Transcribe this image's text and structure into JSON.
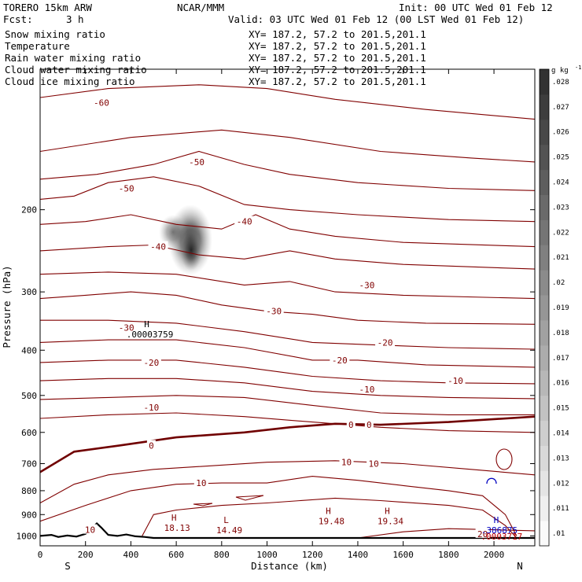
{
  "header": {
    "model": "TORERO   15km ARW",
    "center": "NCAR/MMM",
    "init": "Init: 00 UTC Wed 01 Feb 12",
    "fcst_label": "Fcst:",
    "fcst_value": "3 h",
    "valid": "Valid: 03 UTC Wed 01 Feb 12 (00 LST Wed 01 Feb 12)"
  },
  "fields": [
    {
      "name": "Snow mixing ratio",
      "xy": "XY= 187.2, 57.2 to 201.5,201.1",
      "color": "#000000"
    },
    {
      "name": "Temperature",
      "xy": "XY= 187.2, 57.2 to 201.5,201.1",
      "color": "#c00000"
    },
    {
      "name": "Rain water mixing ratio",
      "xy": "XY= 187.2, 57.2 to 201.5,201.1",
      "color": "#c00000"
    },
    {
      "name": "Cloud water mixing ratio",
      "xy": "XY= 187.2, 57.2 to 201.5,201.1",
      "color": "#0000c0"
    },
    {
      "name": "Cloud ice mixing ratio",
      "xy": "XY= 187.2, 57.2 to 201.5,201.1",
      "color": "#000000"
    }
  ],
  "chart_data": {
    "type": "line",
    "xlabel": "Distance (km)",
    "ylabel": "Pressure (hPa)",
    "xlim": [
      0,
      2180
    ],
    "ylim": [
      1050,
      100
    ],
    "x_ticks": [
      0,
      200,
      400,
      600,
      800,
      1000,
      1200,
      1400,
      1600,
      1800,
      2000
    ],
    "y_ticks": [
      200,
      300,
      400,
      500,
      600,
      700,
      800,
      900,
      1000
    ],
    "y_scale": "log",
    "grid": false,
    "endpoints": {
      "left": "S",
      "right": "N"
    },
    "colors": {
      "temperature": "#800000",
      "zero_line": "#700000",
      "terrain": "#000000",
      "cloud_water": "#0000c0",
      "rain": "#c00000"
    },
    "colorbar": {
      "unit": "g kg",
      "unit_exp": "-1",
      "ticks": [
        ".01",
        ".011",
        ".012",
        ".013",
        ".014",
        ".015",
        ".016",
        ".017",
        ".018",
        ".019",
        ".02",
        ".021",
        ".022",
        ".023",
        ".024",
        ".025",
        ".026",
        ".027",
        ".028"
      ]
    },
    "isotherms": [
      {
        "label": "-60",
        "points": [
          [
            0,
            115
          ],
          [
            300,
            110
          ],
          [
            700,
            108
          ],
          [
            1000,
            110
          ],
          [
            1300,
            116
          ],
          [
            1700,
            122
          ],
          [
            2180,
            128
          ]
        ]
      },
      {
        "label": "",
        "points": [
          [
            0,
            150
          ],
          [
            400,
            140
          ],
          [
            800,
            135
          ],
          [
            1100,
            140
          ],
          [
            1500,
            150
          ],
          [
            1900,
            155
          ],
          [
            2180,
            158
          ]
        ]
      },
      {
        "label": "-50",
        "points": [
          [
            0,
            172
          ],
          [
            250,
            168
          ],
          [
            500,
            160
          ],
          [
            700,
            150
          ],
          [
            900,
            160
          ],
          [
            1100,
            168
          ],
          [
            1400,
            175
          ],
          [
            1800,
            180
          ],
          [
            2180,
            182
          ]
        ]
      },
      {
        "label": "-50",
        "points": [
          [
            0,
            190
          ],
          [
            150,
            187
          ],
          [
            300,
            175
          ],
          [
            500,
            170
          ],
          [
            700,
            178
          ],
          [
            900,
            195
          ],
          [
            1100,
            200
          ],
          [
            1400,
            205
          ],
          [
            1800,
            210
          ],
          [
            2180,
            212
          ]
        ]
      },
      {
        "label": "-40",
        "points": [
          [
            0,
            215
          ],
          [
            200,
            212
          ],
          [
            400,
            205
          ],
          [
            600,
            215
          ],
          [
            800,
            220
          ],
          [
            950,
            205
          ],
          [
            1100,
            220
          ],
          [
            1300,
            228
          ],
          [
            1600,
            235
          ],
          [
            2180,
            240
          ]
        ]
      },
      {
        "label": "-40",
        "points": [
          [
            0,
            245
          ],
          [
            300,
            240
          ],
          [
            500,
            238
          ],
          [
            700,
            250
          ],
          [
            900,
            255
          ],
          [
            1100,
            245
          ],
          [
            1300,
            255
          ],
          [
            1600,
            262
          ],
          [
            2180,
            268
          ]
        ]
      },
      {
        "label": "-30",
        "points": [
          [
            0,
            275
          ],
          [
            300,
            272
          ],
          [
            600,
            275
          ],
          [
            900,
            290
          ],
          [
            1100,
            285
          ],
          [
            1300,
            300
          ],
          [
            1600,
            305
          ],
          [
            2180,
            310
          ]
        ]
      },
      {
        "label": "-30",
        "points": [
          [
            0,
            310
          ],
          [
            200,
            305
          ],
          [
            400,
            300
          ],
          [
            600,
            305
          ],
          [
            800,
            320
          ],
          [
            1000,
            330
          ],
          [
            1200,
            335
          ],
          [
            1400,
            345
          ],
          [
            1700,
            350
          ],
          [
            2180,
            352
          ]
        ]
      },
      {
        "label": "-30",
        "points": [
          [
            0,
            345
          ],
          [
            300,
            345
          ],
          [
            600,
            350
          ],
          [
            900,
            365
          ],
          [
            1200,
            385
          ],
          [
            1500,
            390
          ],
          [
            1800,
            395
          ],
          [
            2180,
            398
          ]
        ]
      },
      {
        "label": "-20",
        "points": [
          [
            0,
            385
          ],
          [
            300,
            380
          ],
          [
            600,
            380
          ],
          [
            900,
            395
          ],
          [
            1200,
            420
          ],
          [
            1400,
            420
          ],
          [
            1700,
            430
          ],
          [
            2180,
            435
          ]
        ]
      },
      {
        "label": "-20",
        "points": [
          [
            0,
            425
          ],
          [
            300,
            420
          ],
          [
            600,
            420
          ],
          [
            900,
            435
          ],
          [
            1200,
            455
          ],
          [
            1500,
            465
          ],
          [
            1800,
            470
          ],
          [
            2180,
            472
          ]
        ]
      },
      {
        "label": "-10",
        "points": [
          [
            0,
            465
          ],
          [
            300,
            460
          ],
          [
            600,
            460
          ],
          [
            900,
            470
          ],
          [
            1200,
            490
          ],
          [
            1500,
            500
          ],
          [
            1800,
            505
          ],
          [
            2180,
            508
          ]
        ]
      },
      {
        "label": "-10",
        "points": [
          [
            0,
            510
          ],
          [
            300,
            505
          ],
          [
            600,
            500
          ],
          [
            900,
            505
          ],
          [
            1200,
            525
          ],
          [
            1500,
            545
          ],
          [
            1800,
            550
          ],
          [
            2180,
            550
          ]
        ]
      },
      {
        "label": "",
        "points": [
          [
            0,
            560
          ],
          [
            300,
            550
          ],
          [
            600,
            545
          ],
          [
            900,
            555
          ],
          [
            1200,
            570
          ],
          [
            1500,
            585
          ],
          [
            1800,
            595
          ],
          [
            2180,
            600
          ]
        ]
      },
      {
        "label": "10",
        "points": [
          [
            0,
            850
          ],
          [
            150,
            775
          ],
          [
            300,
            740
          ],
          [
            500,
            720
          ],
          [
            700,
            710
          ],
          [
            1000,
            695
          ],
          [
            1300,
            690
          ],
          [
            1600,
            700
          ],
          [
            1900,
            720
          ],
          [
            2180,
            740
          ]
        ]
      },
      {
        "label": "10",
        "points": [
          [
            0,
            930
          ],
          [
            200,
            860
          ],
          [
            400,
            800
          ],
          [
            600,
            775
          ],
          [
            800,
            770
          ],
          [
            1000,
            770
          ],
          [
            1200,
            745
          ],
          [
            1400,
            760
          ],
          [
            1600,
            780
          ],
          [
            1800,
            800
          ],
          [
            1950,
            820
          ],
          [
            2050,
            900
          ],
          [
            2100,
            1000
          ]
        ]
      },
      {
        "label": "",
        "points": [
          [
            450,
            1000
          ],
          [
            500,
            900
          ],
          [
            600,
            880
          ],
          [
            800,
            860
          ],
          [
            1000,
            850
          ],
          [
            1300,
            830
          ],
          [
            1500,
            840
          ],
          [
            1800,
            860
          ],
          [
            1950,
            880
          ],
          [
            2050,
            950
          ],
          [
            2100,
            1010
          ]
        ]
      },
      {
        "label": "20",
        "points": [
          [
            1400,
            1010
          ],
          [
            1600,
            980
          ],
          [
            1800,
            965
          ],
          [
            2000,
            970
          ],
          [
            2180,
            975
          ]
        ]
      }
    ],
    "zero_isotherm": {
      "label": "0",
      "points": [
        [
          0,
          730
        ],
        [
          150,
          660
        ],
        [
          350,
          640
        ],
        [
          600,
          615
        ],
        [
          900,
          600
        ],
        [
          1100,
          585
        ],
        [
          1300,
          575
        ],
        [
          1500,
          578
        ],
        [
          1800,
          570
        ],
        [
          2180,
          555
        ]
      ]
    },
    "terrain": [
      [
        0,
        1000
      ],
      [
        50,
        995
      ],
      [
        80,
        1005
      ],
      [
        120,
        998
      ],
      [
        160,
        1003
      ],
      [
        200,
        990
      ],
      [
        230,
        960
      ],
      [
        250,
        940
      ],
      [
        270,
        960
      ],
      [
        300,
        995
      ],
      [
        340,
        1000
      ],
      [
        380,
        993
      ],
      [
        420,
        1002
      ],
      [
        460,
        1005
      ],
      [
        500,
        1010
      ],
      [
        2180,
        1010
      ]
    ],
    "extrema": [
      {
        "type": "H",
        "value": ".00003759",
        "x": 470,
        "p": 360
      },
      {
        "type": "H",
        "value": "18.13",
        "x": 590,
        "p": 935
      },
      {
        "type": "L",
        "value": "14.49",
        "x": 820,
        "p": 945
      },
      {
        "type": "H",
        "value": "19.48",
        "x": 1270,
        "p": 905
      },
      {
        "type": "H",
        "value": "19.34",
        "x": 1530,
        "p": 905
      },
      {
        "type": "H",
        "value": ".386875",
        "x": 2010,
        "p": 945
      },
      {
        "type": "",
        "value": ".0003717",
        "x": 2020,
        "p": 975
      }
    ],
    "isotherm_labels": [
      {
        "text": "-60",
        "x": 270,
        "p": 118
      },
      {
        "text": "-50",
        "x": 690,
        "p": 158
      },
      {
        "text": "-50",
        "x": 380,
        "p": 180
      },
      {
        "text": "-40",
        "x": 900,
        "p": 212
      },
      {
        "text": "-40",
        "x": 520,
        "p": 240
      },
      {
        "text": "-30",
        "x": 1440,
        "p": 290
      },
      {
        "text": "-30",
        "x": 1030,
        "p": 330
      },
      {
        "text": "-30",
        "x": 380,
        "p": 358
      },
      {
        "text": "-20",
        "x": 1520,
        "p": 385
      },
      {
        "text": "-20",
        "x": 1320,
        "p": 420
      },
      {
        "text": "-20",
        "x": 490,
        "p": 425
      },
      {
        "text": "-10",
        "x": 1830,
        "p": 465
      },
      {
        "text": "-10",
        "x": 1440,
        "p": 485
      },
      {
        "text": "-10",
        "x": 490,
        "p": 530
      },
      {
        "text": "0",
        "x": 1370,
        "p": 578
      },
      {
        "text": "0",
        "x": 1450,
        "p": 578
      },
      {
        "text": "0",
        "x": 490,
        "p": 640
      },
      {
        "text": "10",
        "x": 1350,
        "p": 695
      },
      {
        "text": "10",
        "x": 1470,
        "p": 700
      },
      {
        "text": "10",
        "x": 710,
        "p": 770
      },
      {
        "text": "10",
        "x": 220,
        "p": 970
      },
      {
        "text": "20",
        "x": 1950,
        "p": 990
      }
    ]
  }
}
